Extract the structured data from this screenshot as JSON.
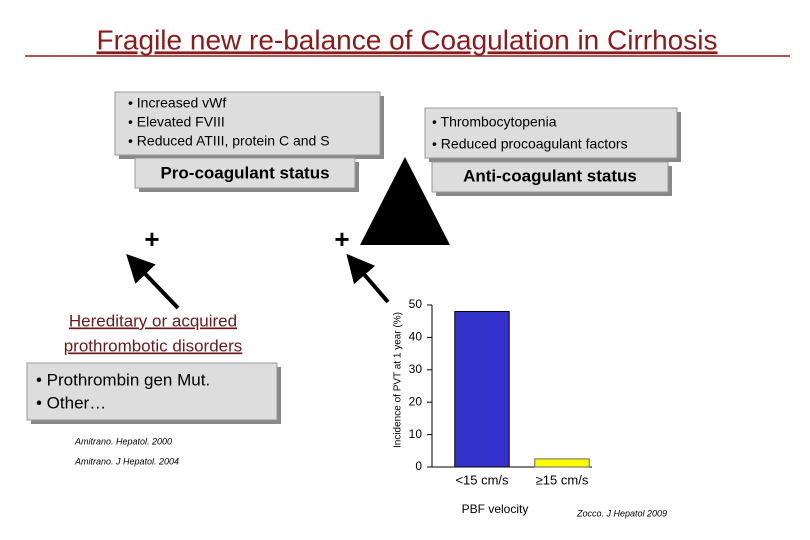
{
  "title": "Fragile new re-balance of Coagulation in Cirrhosis",
  "pro_factors": [
    "• Increased vWf",
    "• Elevated FVIII",
    "• Reduced ATIII, protein C and S"
  ],
  "anti_factors": [
    "• Thrombocytopenia",
    "• Reduced procoagulant factors"
  ],
  "pro_label": "Pro-coagulant status",
  "anti_label": "Anti-coagulant status",
  "plus_left": "+",
  "plus_right": "+",
  "disorders_title": [
    "Hereditary or acquired",
    "prothrombotic disorders"
  ],
  "disorders": [
    "• Prothrombin gen Mut.",
    "• Other…"
  ],
  "citations": [
    "Amitrano. Hepatol. 2000",
    "Amitrano. J Hepatol. 2004"
  ],
  "chart_data": {
    "type": "bar",
    "y_label": "Incidence of PVT at 1 year (%)",
    "x_label": "PBF velocity",
    "source": "Zocco. J Hepatol 2009",
    "categories": [
      "<15 cm/s",
      "≥15 cm/s"
    ],
    "values": [
      48,
      2.5
    ],
    "colors": [
      "#3333cc",
      "#ffff00"
    ],
    "ylim": [
      0,
      50
    ],
    "yticks": [
      0,
      10,
      20,
      30,
      40,
      50
    ]
  }
}
